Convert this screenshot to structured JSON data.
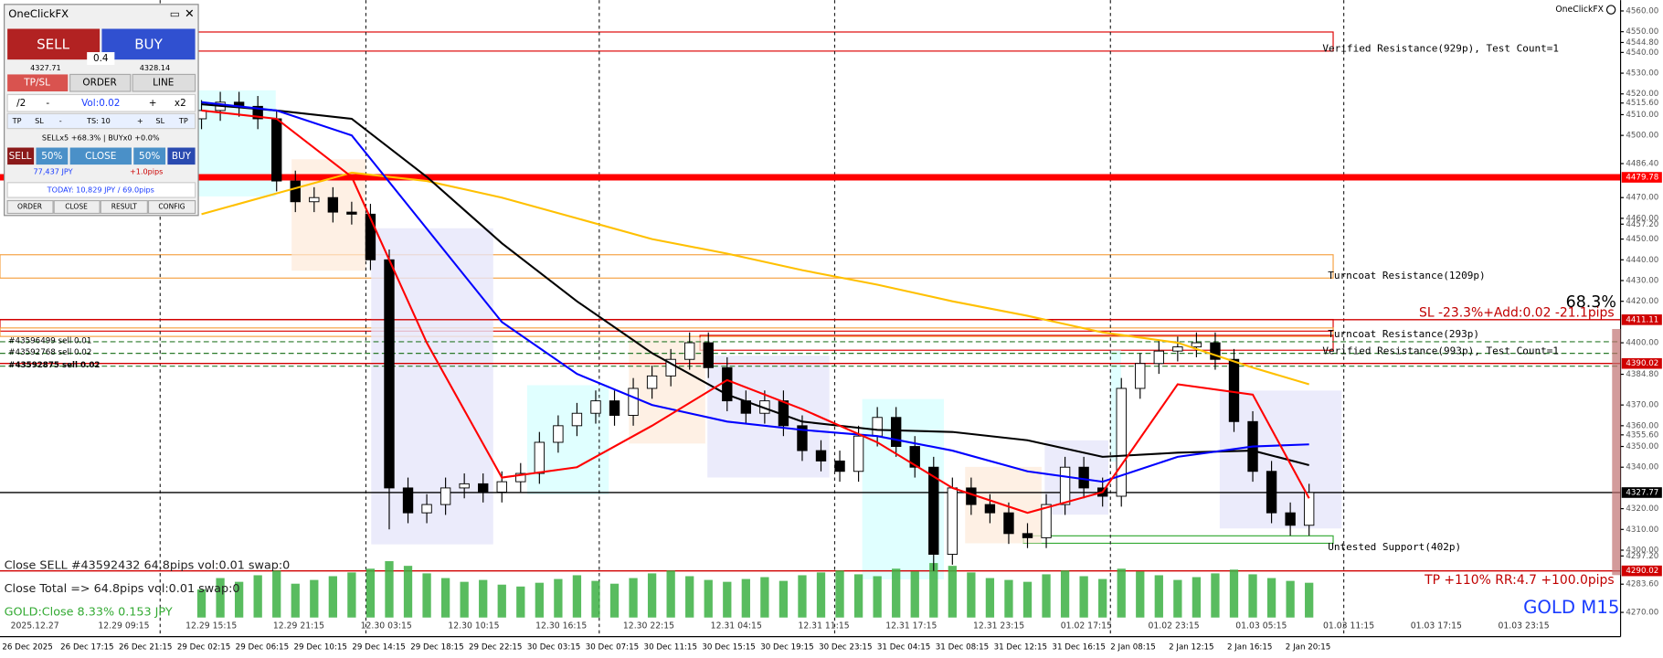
{
  "panel": {
    "title": "OneClickFX",
    "sell": "SELL",
    "buy": "BUY",
    "spread": "0.4",
    "bid": "4327.71",
    "ask": "4328.14",
    "tabs": [
      "TP/SL",
      "ORDER",
      "LINE"
    ],
    "vol_row": [
      "/2",
      "-",
      "Vol:0.02",
      "+",
      "x2"
    ],
    "ts_row": [
      "TP",
      "SL",
      "-",
      "TS: 10",
      "+",
      "SL",
      "TP"
    ],
    "status": "SELLx5 +68.3% | BUYx0 +0.0%",
    "close_row": [
      "SELL",
      "50%",
      "CLOSE",
      "50%",
      "BUY"
    ],
    "profit": "77,437 JPY",
    "profit_pips": "+1.0pips",
    "today": "TODAY: 10,829 JPY / 69.0pips",
    "footer": [
      "ORDER",
      "CLOSE",
      "RESULT",
      "CONFIG"
    ]
  },
  "chart": {
    "type": "candlestick",
    "brand": "OneClickFX",
    "symbol": "GOLD M15",
    "ylim": [
      4262.4,
      4565.2
    ],
    "yticks": [
      {
        "value": 4560,
        "label": "4560.00"
      },
      {
        "value": 4550,
        "label": "4550.00"
      },
      {
        "value": 4544.8,
        "label": "4544.80"
      },
      {
        "value": 4540,
        "label": "4540.00"
      },
      {
        "value": 4530,
        "label": "4530.00"
      },
      {
        "value": 4520,
        "label": "4520.00"
      },
      {
        "value": 4515.6,
        "label": "4515.60"
      },
      {
        "value": 4510,
        "label": "4510.00"
      },
      {
        "value": 4500,
        "label": "4500.00"
      },
      {
        "value": 4486.4,
        "label": "4486.40"
      },
      {
        "value": 4470,
        "label": "4470.00"
      },
      {
        "value": 4460,
        "label": "4460.00"
      },
      {
        "value": 4457.2,
        "label": "4457.20"
      },
      {
        "value": 4450,
        "label": "4450.00"
      },
      {
        "value": 4440,
        "label": "4440.00"
      },
      {
        "value": 4430,
        "label": "4430.00"
      },
      {
        "value": 4420,
        "label": "4420.00"
      },
      {
        "value": 4400,
        "label": "4400.00"
      },
      {
        "value": 4384.8,
        "label": "4384.80"
      },
      {
        "value": 4370,
        "label": "4370.00"
      },
      {
        "value": 4360,
        "label": "4360.00"
      },
      {
        "value": 4355.6,
        "label": "4355.60"
      },
      {
        "value": 4350,
        "label": "4350.00"
      },
      {
        "value": 4340,
        "label": "4340.00"
      },
      {
        "value": 4320,
        "label": "4320.00"
      },
      {
        "value": 4310,
        "label": "4310.00"
      },
      {
        "value": 4300,
        "label": "4300.00"
      },
      {
        "value": 4297.2,
        "label": "4297.20"
      },
      {
        "value": 4283.6,
        "label": "4283.60"
      },
      {
        "value": 4270,
        "label": "4270.00"
      }
    ],
    "levels": [
      {
        "value": 4479.78,
        "label": "4479.78",
        "color": "#ff0000"
      },
      {
        "value": 4411.11,
        "label": "4411.11",
        "color": "#d00000"
      },
      {
        "value": 4390.02,
        "label": "4390.02",
        "color": "#d00000"
      },
      {
        "value": 4327.77,
        "label": "4327.77",
        "color": "#000000"
      },
      {
        "value": 4290.02,
        "label": "4290.02",
        "color": "#d00000"
      }
    ],
    "orders": [
      {
        "label": "#43596499 sell 0.01",
        "value": 4400.5
      },
      {
        "label": "#43592768 sell 0.02",
        "value": 4394.9
      },
      {
        "label": "#43592875 sell 0.02",
        "value": 4388.7
      }
    ],
    "open": [
      4508,
      4512,
      4516,
      4514,
      4508,
      4478,
      4468,
      4470,
      4463,
      4462,
      4440,
      4330,
      4318,
      4322,
      4330,
      4332,
      4328,
      4333,
      4337,
      4352,
      4360,
      4366,
      4372,
      4365,
      4378,
      4384,
      4392,
      4400,
      4388,
      4372,
      4366,
      4372,
      4360,
      4348,
      4343,
      4338,
      4355,
      4364,
      4350,
      4340,
      4298,
      4330,
      4322,
      4318,
      4308,
      4306,
      4322,
      4340,
      4330,
      4326,
      4378,
      4390,
      4396,
      4398,
      4400,
      4392,
      4362,
      4338,
      4318,
      4312
    ],
    "high": [
      4517,
      4521,
      4521,
      4519,
      4512,
      4483,
      4475,
      4475,
      4468,
      4467,
      4445,
      4335,
      4327,
      4335,
      4337,
      4337,
      4338,
      4342,
      4357,
      4365,
      4371,
      4377,
      4377,
      4383,
      4389,
      4397,
      4405,
      4405,
      4393,
      4377,
      4377,
      4377,
      4365,
      4353,
      4348,
      4360,
      4369,
      4369,
      4355,
      4345,
      4335,
      4335,
      4327,
      4323,
      4313,
      4327,
      4345,
      4345,
      4335,
      4383,
      4395,
      4401,
      4403,
      4405,
      4405,
      4397,
      4367,
      4343,
      4323,
      4332
    ],
    "low": [
      4503,
      4507,
      4509,
      4503,
      4473,
      4463,
      4463,
      4458,
      4457,
      4435,
      4310,
      4313,
      4313,
      4317,
      4325,
      4323,
      4323,
      4328,
      4332,
      4347,
      4355,
      4361,
      4360,
      4360,
      4373,
      4379,
      4387,
      4383,
      4367,
      4361,
      4361,
      4355,
      4343,
      4338,
      4333,
      4333,
      4350,
      4345,
      4335,
      4290,
      4293,
      4317,
      4313,
      4303,
      4301,
      4301,
      4317,
      4325,
      4321,
      4321,
      4373,
      4385,
      4391,
      4393,
      4387,
      4357,
      4333,
      4313,
      4307,
      4307
    ],
    "close": [
      4512,
      4516,
      4514,
      4508,
      4478,
      4468,
      4470,
      4463,
      4462,
      4440,
      4330,
      4318,
      4322,
      4330,
      4332,
      4328,
      4333,
      4337,
      4352,
      4360,
      4366,
      4372,
      4365,
      4378,
      4384,
      4392,
      4400,
      4388,
      4372,
      4366,
      4372,
      4360,
      4348,
      4343,
      4338,
      4355,
      4364,
      4350,
      4340,
      4298,
      4330,
      4322,
      4318,
      4308,
      4306,
      4322,
      4340,
      4330,
      4326,
      4378,
      4390,
      4396,
      4398,
      4400,
      4392,
      4362,
      4338,
      4318,
      4312,
      4327.77
    ],
    "volume": [
      30,
      42,
      38,
      45,
      50,
      36,
      40,
      44,
      48,
      52,
      60,
      55,
      47,
      42,
      38,
      40,
      35,
      33,
      37,
      41,
      45,
      39,
      36,
      42,
      47,
      50,
      44,
      40,
      38,
      41,
      43,
      39,
      45,
      48,
      50,
      46,
      44,
      52,
      49,
      58,
      55,
      48,
      42,
      40,
      38,
      46,
      50,
      44,
      41,
      52,
      49,
      45,
      40,
      43,
      47,
      51,
      46,
      42,
      39,
      37
    ],
    "vlim": [
      0,
      70
    ],
    "ma_x": [
      0,
      4,
      8,
      12,
      16,
      20,
      24,
      28,
      32,
      36,
      40,
      44,
      48,
      52,
      56,
      59
    ],
    "ma": [
      {
        "color": "#ffc000",
        "values": [
          4462,
          4472,
          4482,
          4478,
          4470,
          4460,
          4450,
          4443,
          4435,
          4428,
          4420,
          4413,
          4405,
          4400,
          4388,
          4380
        ]
      },
      {
        "color": "#000000",
        "values": [
          4515,
          4512,
          4508,
          4480,
          4448,
          4420,
          4395,
          4375,
          4362,
          4358,
          4357,
          4353,
          4345,
          4347,
          4348,
          4341
        ]
      },
      {
        "color": "#0000ff",
        "values": [
          4516,
          4512,
          4500,
          4455,
          4410,
          4385,
          4370,
          4362,
          4358,
          4355,
          4348,
          4338,
          4333,
          4345,
          4350,
          4351
        ]
      },
      {
        "color": "#ff0000",
        "values": [
          4512,
          4508,
          4480,
          4400,
          4335,
          4340,
          4360,
          4382,
          4368,
          4352,
          4330,
          4318,
          4328,
          4380,
          4375,
          4325
        ]
      }
    ],
    "annotations": {
      "verified_top": "Verified Resistance(929p), Test Count=1",
      "turncoat_1209": "Turncoat Resistance(1209p)",
      "turncoat_293": "Turncoat Resistance(293p)",
      "verified_993": "Verified Resistance(993p), Test Count=1",
      "support": "Untested Support(402p)",
      "pct": "68.3%",
      "sl": "SL -23.3%+Add:0.02 -21.1pips",
      "tp": "TP +110% RR:4.7 +100.0pips",
      "close_sell": "Close SELL #43592432 64.8pips vol:0.01 swap:0",
      "close_total": "Close Total => 64.8pips vol:0.01 swap:0",
      "gold_close": "GOLD:Close 8.33% 0.153 JPY"
    },
    "inner_times": [
      "2025.12.27",
      "12.29 09:15",
      "12.29 15:15",
      "12.29 21:15",
      "12.30 03:15",
      "12.30 10:15",
      "12.30 16:15",
      "12.30 22:15",
      "12.31 04:15",
      "12.31 11:15",
      "12.31 17:15",
      "12.31 23:15",
      "01.02 17:15",
      "01.02 23:15",
      "01.03 05:15",
      "01.03 11:15",
      "01.03 17:15",
      "01.03 23:15"
    ],
    "times": [
      "26 Dec 2025",
      "26 Dec 17:15",
      "26 Dec 21:15",
      "29 Dec 02:15",
      "29 Dec 06:15",
      "29 Dec 10:15",
      "29 Dec 14:15",
      "29 Dec 18:15",
      "29 Dec 22:15",
      "30 Dec 03:15",
      "30 Dec 07:15",
      "30 Dec 11:15",
      "30 Dec 15:15",
      "30 Dec 19:15",
      "30 Dec 23:15",
      "31 Dec 04:15",
      "31 Dec 08:15",
      "31 Dec 12:15",
      "31 Dec 16:15",
      "2 Jan 08:15",
      "2 Jan 12:15",
      "2 Jan 16:15",
      "2 Jan 20:15"
    ]
  }
}
